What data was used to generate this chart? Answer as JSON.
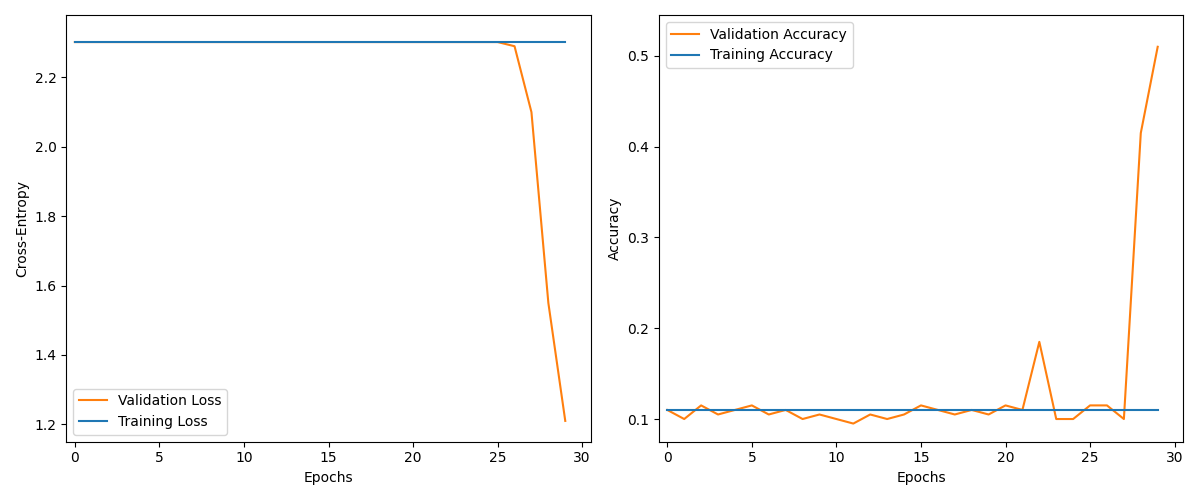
{
  "loss_epochs": [
    0,
    1,
    2,
    3,
    4,
    5,
    6,
    7,
    8,
    9,
    10,
    11,
    12,
    13,
    14,
    15,
    16,
    17,
    18,
    19,
    20,
    21,
    22,
    23,
    24,
    25,
    26,
    27,
    28,
    29
  ],
  "train_loss": [
    2.302,
    2.302,
    2.302,
    2.302,
    2.302,
    2.302,
    2.302,
    2.302,
    2.302,
    2.302,
    2.302,
    2.302,
    2.302,
    2.302,
    2.302,
    2.302,
    2.302,
    2.302,
    2.302,
    2.302,
    2.302,
    2.302,
    2.302,
    2.302,
    2.302,
    2.302,
    2.302,
    2.302,
    2.302,
    2.302
  ],
  "val_loss": [
    2.302,
    2.302,
    2.302,
    2.302,
    2.302,
    2.302,
    2.302,
    2.302,
    2.302,
    2.302,
    2.302,
    2.302,
    2.302,
    2.302,
    2.302,
    2.302,
    2.302,
    2.302,
    2.302,
    2.302,
    2.302,
    2.302,
    2.302,
    2.302,
    2.302,
    2.302,
    2.29,
    2.1,
    1.55,
    1.21
  ],
  "acc_epochs": [
    0,
    1,
    2,
    3,
    4,
    5,
    6,
    7,
    8,
    9,
    10,
    11,
    12,
    13,
    14,
    15,
    16,
    17,
    18,
    19,
    20,
    21,
    22,
    23,
    24,
    25,
    26,
    27,
    28,
    29
  ],
  "train_acc": [
    0.11,
    0.11,
    0.11,
    0.11,
    0.11,
    0.11,
    0.11,
    0.11,
    0.11,
    0.11,
    0.11,
    0.11,
    0.11,
    0.11,
    0.11,
    0.11,
    0.11,
    0.11,
    0.11,
    0.11,
    0.11,
    0.11,
    0.11,
    0.11,
    0.11,
    0.11,
    0.11,
    0.11,
    0.11,
    0.11
  ],
  "val_acc": [
    0.11,
    0.1,
    0.115,
    0.105,
    0.11,
    0.115,
    0.105,
    0.11,
    0.1,
    0.105,
    0.1,
    0.095,
    0.105,
    0.1,
    0.105,
    0.115,
    0.11,
    0.105,
    0.11,
    0.105,
    0.115,
    0.11,
    0.185,
    0.1,
    0.1,
    0.115,
    0.115,
    0.1,
    0.415,
    0.51
  ],
  "train_loss_color": "#1f77b4",
  "val_loss_color": "#ff7f0e",
  "train_acc_color": "#1f77b4",
  "val_acc_color": "#ff7f0e",
  "loss_xlabel": "Epochs",
  "loss_ylabel": "Cross-Entropy",
  "acc_xlabel": "Epochs",
  "acc_ylabel": "Accuracy",
  "loss_legend": [
    "Training Loss",
    "Validation Loss"
  ],
  "acc_legend": [
    "Training Accuracy",
    "Validation Accuracy"
  ],
  "loss_ylim": [
    1.15,
    2.38
  ],
  "acc_ylim": [
    0.075,
    0.545
  ]
}
